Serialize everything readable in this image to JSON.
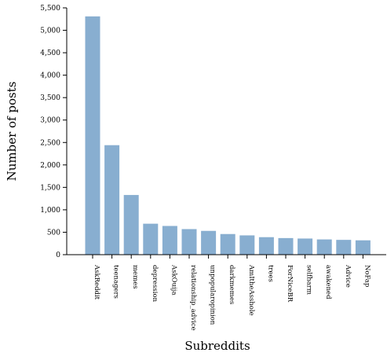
{
  "chart_data": {
    "type": "bar",
    "title": "",
    "xlabel": "Subreddits",
    "ylabel": "Number of posts",
    "categories": [
      "AskReddit",
      "teenagers",
      "memes",
      "depression",
      "AskOuija",
      "relationship_advice",
      "unpopularopinion",
      "darkmemes",
      "AmItheAsshole",
      "trees",
      "ForNiceBR",
      "selfharm",
      "awakened",
      "Advice",
      "NoFap"
    ],
    "values": [
      5310,
      2440,
      1330,
      690,
      640,
      570,
      530,
      460,
      430,
      390,
      370,
      360,
      340,
      330,
      320
    ],
    "ylim": [
      0,
      5500
    ],
    "yticks": [
      0,
      500,
      1000,
      1500,
      2000,
      2500,
      3000,
      3500,
      4000,
      4500,
      5000,
      5500
    ],
    "ytick_labels": [
      "0",
      "500",
      "1,000",
      "1,500",
      "2,000",
      "2,500",
      "3,000",
      "3,500",
      "4,000",
      "4,500",
      "5,000",
      "5,500"
    ],
    "bar_color": "#88aed0",
    "grid": false
  }
}
